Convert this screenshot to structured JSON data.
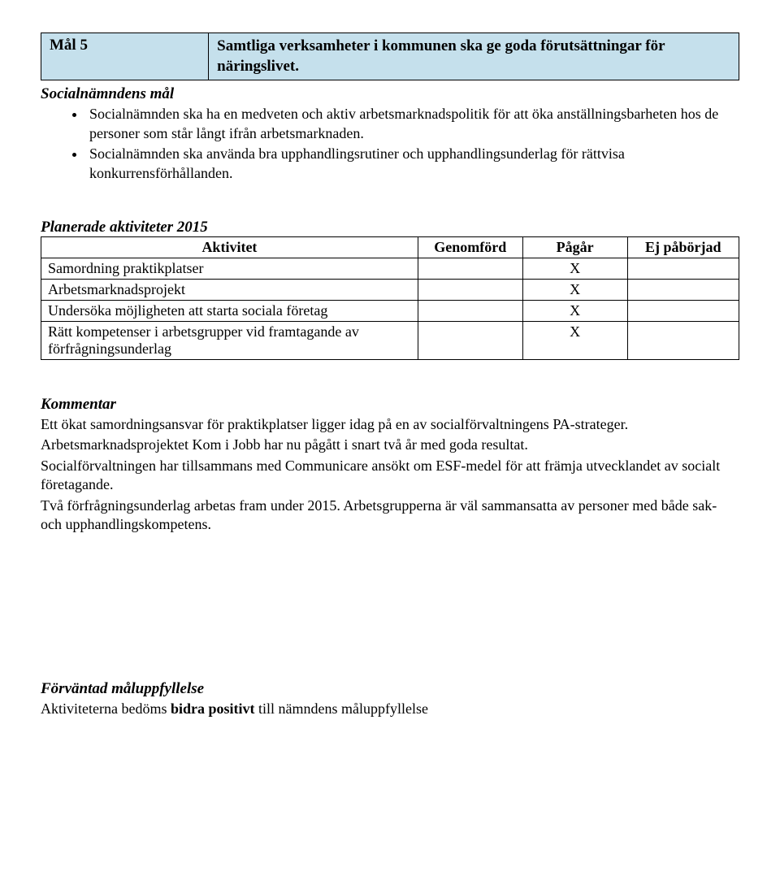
{
  "header": {
    "goal_label": "Mål 5",
    "goal_text": "Samtliga verksamheter i kommunen ska ge goda förutsättningar för näringslivet.",
    "background_color": "#c5e0ec",
    "border_color": "#000000",
    "font_weight": "bold",
    "font_size_pt": 14
  },
  "goals_section": {
    "heading": "Socialnämndens mål",
    "bullets": [
      "Socialnämnden ska ha en medveten och aktiv arbetsmarknadspolitik för att öka anställningsbarheten hos de personer som står långt ifrån arbetsmarknaden.",
      "Socialnämnden ska använda bra upphandlingsrutiner och upphandlingsunderlag för rättvisa konkurrensförhållanden."
    ]
  },
  "plan": {
    "heading": "Planerade aktiviteter 2015",
    "columns": {
      "activity": "Aktivitet",
      "done": "Genomförd",
      "ongoing": "Pågår",
      "not_started": "Ej påbörjad"
    },
    "col_widths_pct": [
      54,
      15,
      15,
      16
    ],
    "mark": "X",
    "rows": [
      {
        "activity": "Samordning praktikplatser",
        "done": "",
        "ongoing": "X",
        "not_started": ""
      },
      {
        "activity": "Arbetsmarknadsprojekt",
        "done": "",
        "ongoing": "X",
        "not_started": ""
      },
      {
        "activity": "Undersöka möjligheten att starta sociala företag",
        "done": "",
        "ongoing": "X",
        "not_started": ""
      },
      {
        "activity": "Rätt kompetenser i arbetsgrupper vid framtagande av förfrågningsunderlag",
        "done": "",
        "ongoing": "X",
        "not_started": ""
      }
    ]
  },
  "comment": {
    "heading": "Kommentar",
    "paragraphs": [
      "Ett ökat samordningsansvar för praktikplatser ligger idag på en av socialförvaltningens PA-strateger.",
      "Arbetsmarknadsprojektet Kom i Jobb har nu pågått i snart två år med goda resultat.",
      "Socialförvaltningen har tillsammans med Communicare ansökt om ESF-medel för att främja utvecklandet av socialt företagande.",
      "Två förfrågningsunderlag arbetas fram under 2015. Arbetsgrupperna är väl sammansatta av personer med både sak- och upphandlingskompetens."
    ]
  },
  "expected": {
    "heading": "Förväntad måluppfyllelse",
    "text_before": "Aktiviteterna bedöms ",
    "text_bold": "bidra positivt",
    "text_after": " till nämndens måluppfyllelse"
  },
  "styling": {
    "body_font": "Garamond, Georgia, Times New Roman, serif",
    "body_font_size_pt": 13,
    "heading_font_style": "bold italic",
    "text_color": "#000000",
    "page_background": "#ffffff"
  }
}
